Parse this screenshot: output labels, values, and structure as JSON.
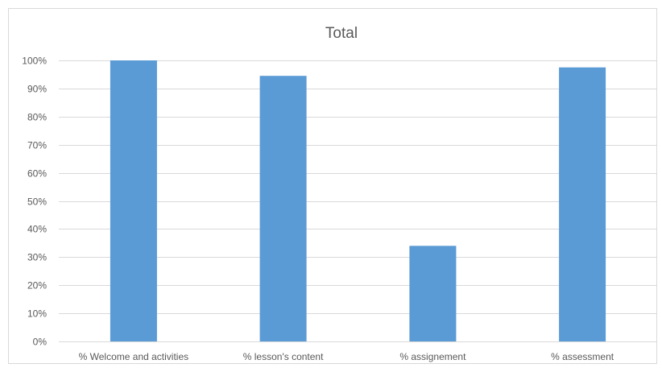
{
  "chart_data": {
    "type": "bar",
    "title": "Total",
    "categories": [
      "% Welcome and activities",
      "% lesson's content",
      "% assignement",
      "% assessment"
    ],
    "values": [
      100,
      94.5,
      34,
      97.5
    ],
    "ylim": [
      0,
      100
    ],
    "yticks": [
      "0%",
      "10%",
      "20%",
      "30%",
      "40%",
      "50%",
      "60%",
      "70%",
      "80%",
      "90%",
      "100%"
    ],
    "xlabel": "",
    "ylabel": "",
    "grid": true,
    "legend": "none",
    "bar_color": "#5b9bd5",
    "grid_color": "#d9d9d9",
    "text_color": "#595959"
  }
}
